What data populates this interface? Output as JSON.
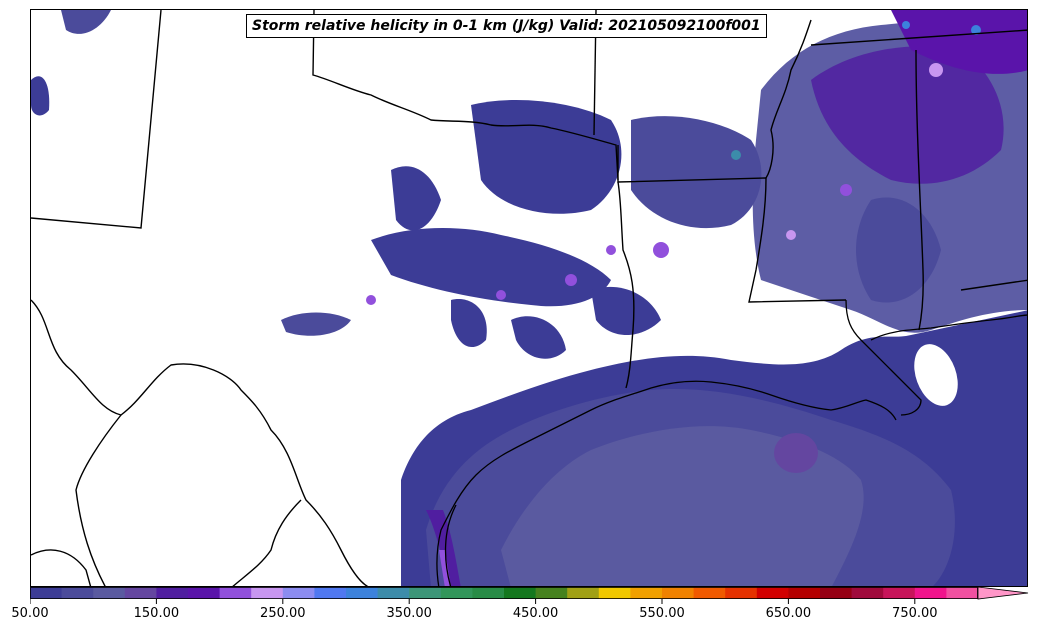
{
  "title": "Storm relative helicity in 0-1 km (J/kg) Valid: 202105092100f001",
  "colorbar": {
    "min": 50,
    "max": 800,
    "step": 25,
    "extend": "max",
    "extend_color": "#ff96c8",
    "tick_labels": [
      "50.00",
      "150.00",
      "250.00",
      "350.00",
      "450.00",
      "550.00",
      "650.00",
      "750.00"
    ],
    "tick_values": [
      50,
      150,
      250,
      350,
      450,
      550,
      650,
      750
    ],
    "colors": [
      "#3c3c96",
      "#4b4b9b",
      "#5a5aa0",
      "#6446a0",
      "#501ea0",
      "#5a14aa",
      "#9150dc",
      "#c896f0",
      "#8c8cf0",
      "#5078f0",
      "#3c82dc",
      "#3c8caa",
      "#3c9678",
      "#32965a",
      "#288c46",
      "#14781e",
      "#46821e",
      "#a0a014",
      "#f0c800",
      "#f0a000",
      "#f08200",
      "#f05a00",
      "#e63200",
      "#d20000",
      "#b40000",
      "#960014",
      "#a00a3c",
      "#c8145a",
      "#f0148c",
      "#f050a0"
    ]
  },
  "map": {
    "region": "Texas / Louisiana / Gulf of Mexico",
    "land_color": "#ffffff",
    "border_color": "#000000"
  }
}
